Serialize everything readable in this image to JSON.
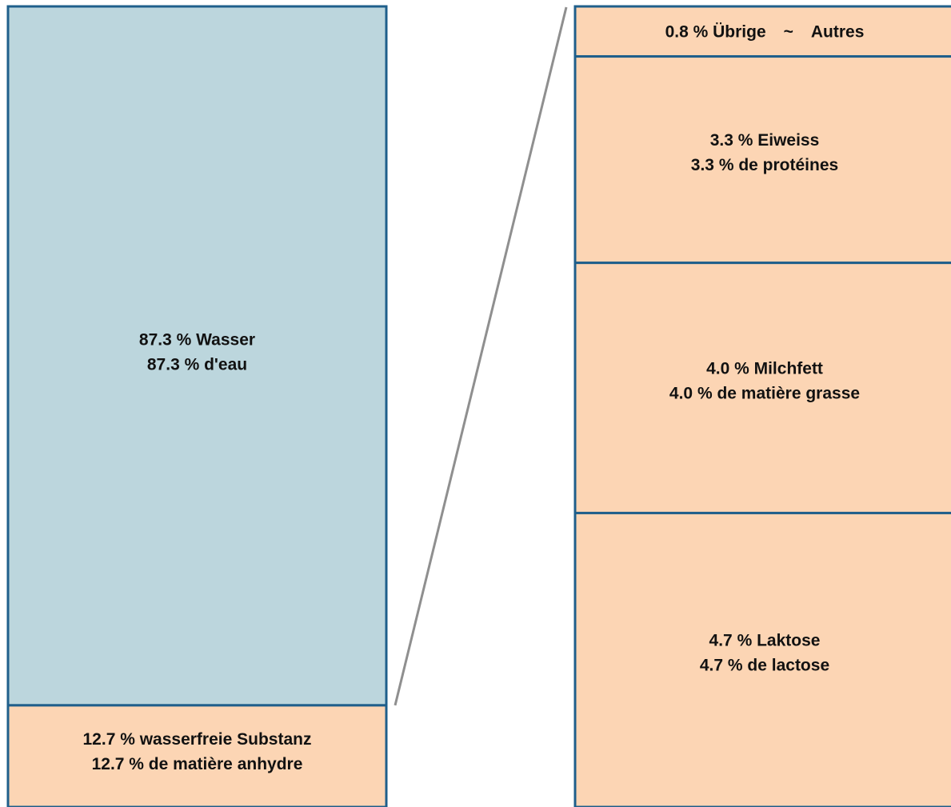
{
  "chart_data": [
    {
      "type": "bar",
      "stacking": "stacked-100",
      "segments": [
        {
          "value": 87.3,
          "color": "#bcd6dd",
          "label_de": "87.3 % Wasser",
          "label_fr": "87.3 % d'eau"
        },
        {
          "value": 12.7,
          "color": "#fcd5b4",
          "label_de": "12.7 % wasserfreie Substanz",
          "label_fr": "12.7 % de matière anhydre"
        }
      ]
    },
    {
      "type": "bar",
      "stacking": "stacked",
      "detail_of": "12.7 % wasserfreie Substanz",
      "segments": [
        {
          "value": 0.8,
          "color": "#fcd5b4",
          "label_de": "0.8 % Übrige",
          "separator": "~",
          "label_fr": "Autres"
        },
        {
          "value": 3.3,
          "color": "#fcd5b4",
          "label_de": "3.3 % Eiweiss",
          "label_fr": "3.3 % de protéines"
        },
        {
          "value": 4.0,
          "color": "#fcd5b4",
          "label_de": "4.0 % Milchfett",
          "label_fr": "4.0 % de matière grasse"
        },
        {
          "value": 4.7,
          "color": "#fcd5b4",
          "label_de": "4.7 % Laktose",
          "label_fr": "4.7 % de lactose"
        }
      ]
    }
  ],
  "colors": {
    "border": "#1f5f8b",
    "connector": "#8f8f8f",
    "text": "#111111"
  }
}
